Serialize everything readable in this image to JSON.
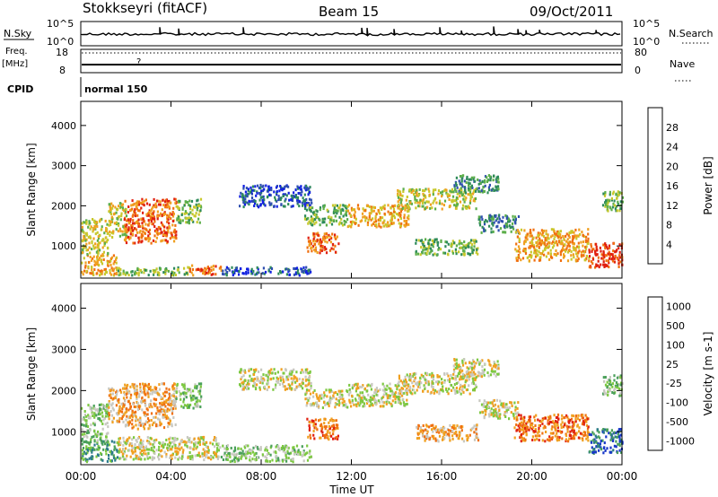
{
  "header": {
    "station": "Stokkseyri (fitACF)",
    "beam": "Beam 15",
    "date": "09/Oct/2011"
  },
  "strip_labels": {
    "nsky": "N.Sky",
    "nsky_top": "10^5",
    "nsky_bottom": "10^0",
    "nsearch": "N.Search",
    "nsearch_top": "10^5",
    "nsearch_bottom": "10^0",
    "freq": "Freq.",
    "freq_unit": "[MHz]",
    "freq_top": "18",
    "freq_bottom": "8",
    "nave": "Nave",
    "nave_top": "80",
    "nave_bottom": "0",
    "cpid": "CPID",
    "cpid_value": "normal 150"
  },
  "chart_data": [
    {
      "type": "heatmap",
      "title": "",
      "xlabel": "Time UT",
      "ylabel": "Slant Range [km]",
      "x_ticks": [
        "00:00",
        "04:00",
        "08:00",
        "12:00",
        "16:00",
        "20:00",
        "00:00"
      ],
      "y_ticks": [
        1000,
        2000,
        3000,
        4000
      ],
      "ylim": [
        200,
        4600
      ],
      "xlim_hours": [
        0,
        24
      ],
      "colorbar": {
        "label": "Power [dB]",
        "ticks": [
          "4",
          "8",
          "12",
          "16",
          "20",
          "24",
          "28"
        ],
        "colors": [
          "#1020e0",
          "#3050b0",
          "#2d8a5a",
          "#5cae4a",
          "#c8c82c",
          "#f0a020",
          "#f07010",
          "#e02010"
        ]
      },
      "regions": [
        {
          "t0": 0.0,
          "t1": 1.6,
          "r0": 300,
          "r1": 800,
          "level": 5
        },
        {
          "t0": 0.0,
          "t1": 1.2,
          "r0": 800,
          "r1": 1700,
          "level": 4
        },
        {
          "t0": 1.2,
          "t1": 2.0,
          "r0": 1250,
          "r1": 2100,
          "level": 4
        },
        {
          "t0": 1.9,
          "t1": 4.2,
          "r0": 1100,
          "r1": 2200,
          "level": 6
        },
        {
          "t0": 4.2,
          "t1": 5.3,
          "r0": 1600,
          "r1": 2200,
          "level": 3
        },
        {
          "t0": 1.6,
          "t1": 4.8,
          "r0": 300,
          "r1": 500,
          "level": 3
        },
        {
          "t0": 4.8,
          "t1": 6.2,
          "r0": 300,
          "r1": 550,
          "level": 6
        },
        {
          "t0": 6.2,
          "t1": 10.2,
          "r0": 300,
          "r1": 500,
          "level": 1
        },
        {
          "t0": 7.0,
          "t1": 10.2,
          "r0": 2000,
          "r1": 2550,
          "level": 1
        },
        {
          "t0": 9.9,
          "t1": 11.8,
          "r0": 1550,
          "r1": 2050,
          "level": 3
        },
        {
          "t0": 10.0,
          "t1": 11.4,
          "r0": 850,
          "r1": 1350,
          "level": 6
        },
        {
          "t0": 11.8,
          "t1": 14.5,
          "r0": 1500,
          "r1": 2050,
          "level": 5
        },
        {
          "t0": 14.0,
          "t1": 17.5,
          "r0": 1950,
          "r1": 2450,
          "level": 4
        },
        {
          "t0": 14.8,
          "t1": 17.6,
          "r0": 800,
          "r1": 1200,
          "level": 3
        },
        {
          "t0": 16.5,
          "t1": 18.5,
          "r0": 2350,
          "r1": 2800,
          "level": 2
        },
        {
          "t0": 17.6,
          "t1": 19.4,
          "r0": 1350,
          "r1": 1800,
          "level": 2
        },
        {
          "t0": 19.2,
          "t1": 22.5,
          "r0": 650,
          "r1": 1450,
          "level": 5
        },
        {
          "t0": 22.5,
          "t1": 24.0,
          "r0": 500,
          "r1": 1100,
          "level": 7
        },
        {
          "t0": 23.1,
          "t1": 24.0,
          "r0": 1900,
          "r1": 2400,
          "level": 3
        }
      ]
    },
    {
      "type": "heatmap",
      "title": "",
      "xlabel": "Time UT",
      "ylabel": "Slant Range [km]",
      "x_ticks": [
        "00:00",
        "04:00",
        "08:00",
        "12:00",
        "16:00",
        "20:00",
        "00:00"
      ],
      "y_ticks": [
        1000,
        2000,
        3000,
        4000
      ],
      "ylim": [
        200,
        4600
      ],
      "xlim_hours": [
        0,
        24
      ],
      "colorbar": {
        "label": "Velocity [m s-1]",
        "ticks": [
          "1000",
          "500",
          "100",
          "25",
          "-25",
          "-100",
          "-500",
          "-1000"
        ],
        "colors": [
          "#1838c8",
          "#2a7a8a",
          "#4aa05a",
          "#7cc840",
          "#c8c8c0",
          "#f0a020",
          "#f07010",
          "#e02010"
        ]
      },
      "regions": [
        {
          "t0": 0.0,
          "t1": 1.6,
          "r0": 300,
          "r1": 800,
          "level": 2
        },
        {
          "t0": 0.0,
          "t1": 1.2,
          "r0": 800,
          "r1": 1700,
          "level": 3
        },
        {
          "t0": 1.2,
          "t1": 2.0,
          "r0": 1250,
          "r1": 2100,
          "level": 5
        },
        {
          "t0": 1.9,
          "t1": 4.2,
          "r0": 1100,
          "r1": 2200,
          "level": 5
        },
        {
          "t0": 4.2,
          "t1": 5.3,
          "r0": 1600,
          "r1": 2200,
          "level": 3
        },
        {
          "t0": 1.6,
          "t1": 6.2,
          "r0": 350,
          "r1": 900,
          "level": 4
        },
        {
          "t0": 6.2,
          "t1": 10.2,
          "r0": 300,
          "r1": 700,
          "level": 3
        },
        {
          "t0": 7.0,
          "t1": 10.2,
          "r0": 2050,
          "r1": 2550,
          "level": 4
        },
        {
          "t0": 9.9,
          "t1": 11.8,
          "r0": 1600,
          "r1": 2050,
          "level": 4
        },
        {
          "t0": 10.0,
          "t1": 11.4,
          "r0": 850,
          "r1": 1350,
          "level": 6
        },
        {
          "t0": 11.8,
          "t1": 14.5,
          "r0": 1650,
          "r1": 2200,
          "level": 4
        },
        {
          "t0": 14.0,
          "t1": 17.5,
          "r0": 1950,
          "r1": 2450,
          "level": 4
        },
        {
          "t0": 14.8,
          "t1": 17.6,
          "r0": 800,
          "r1": 1200,
          "level": 5
        },
        {
          "t0": 16.5,
          "t1": 18.5,
          "r0": 2350,
          "r1": 2800,
          "level": 4
        },
        {
          "t0": 17.6,
          "t1": 19.4,
          "r0": 1350,
          "r1": 1800,
          "level": 4
        },
        {
          "t0": 19.2,
          "t1": 22.5,
          "r0": 800,
          "r1": 1450,
          "level": 6
        },
        {
          "t0": 22.5,
          "t1": 24.0,
          "r0": 500,
          "r1": 1100,
          "level": 1
        },
        {
          "t0": 23.1,
          "t1": 24.0,
          "r0": 1900,
          "r1": 2400,
          "level": 3
        }
      ]
    }
  ]
}
